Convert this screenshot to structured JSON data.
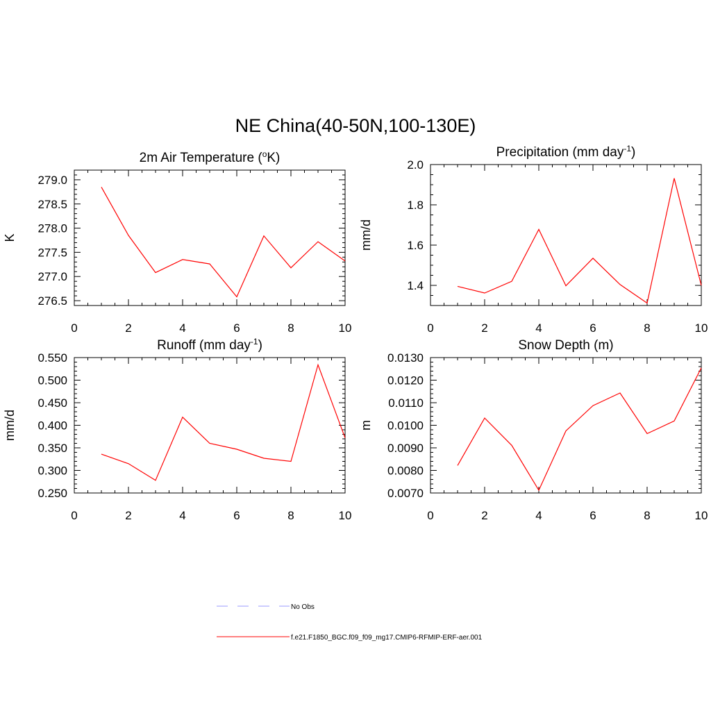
{
  "figure": {
    "title": "NE China(40-50N,100-130E)"
  },
  "colors": {
    "model_line": "#ff0000",
    "obs_line": "#9999ff",
    "axis": "#000000"
  },
  "chart_data": [
    {
      "type": "line",
      "title": "2m Air Temperature (°K)",
      "title_main": "2m Air Temperature (",
      "title_sup": "o",
      "title_tail": "K)",
      "xlabel": "",
      "ylabel": "K",
      "xlim": [
        0,
        10
      ],
      "ylim": [
        276.4,
        279.2
      ],
      "xticks": [
        0,
        2,
        4,
        6,
        8,
        10
      ],
      "xtick_labels": [
        "0",
        "2",
        "4",
        "6",
        "8",
        "10"
      ],
      "yticks": [
        276.5,
        277.0,
        277.5,
        278.0,
        278.5,
        279.0
      ],
      "ytick_labels": [
        "276.5",
        "277.0",
        "277.5",
        "278.0",
        "278.5",
        "279.0"
      ],
      "x_minor_step": 0.5,
      "y_minor_step": 0.1,
      "grid": false,
      "series": [
        {
          "x": [
            1,
            2,
            3,
            4,
            5,
            6,
            7,
            8,
            9,
            10
          ],
          "values": [
            278.85,
            277.85,
            277.08,
            277.35,
            277.26,
            276.58,
            277.84,
            277.18,
            277.72,
            277.32
          ]
        }
      ]
    },
    {
      "type": "line",
      "title": "Precipitation (mm day-1)",
      "title_main": "Precipitation (mm day",
      "title_sup": "-1",
      "title_tail": ")",
      "xlabel": "",
      "ylabel": "mm/d",
      "xlim": [
        0,
        10
      ],
      "ylim": [
        1.3,
        2.0
      ],
      "xticks": [
        0,
        2,
        4,
        6,
        8,
        10
      ],
      "xtick_labels": [
        "0",
        "2",
        "4",
        "6",
        "8",
        "10"
      ],
      "yticks": [
        1.4,
        1.6,
        1.8,
        2.0
      ],
      "ytick_labels": [
        "1.4",
        "1.6",
        "1.8",
        "2.0"
      ],
      "x_minor_step": 0.5,
      "y_minor_step": 0.05,
      "grid": false,
      "series": [
        {
          "x": [
            1,
            2,
            3,
            4,
            5,
            6,
            7,
            8,
            9,
            10
          ],
          "values": [
            1.395,
            1.362,
            1.42,
            1.678,
            1.398,
            1.535,
            1.404,
            1.312,
            1.932,
            1.4
          ]
        }
      ]
    },
    {
      "type": "line",
      "title": "Runoff (mm day-1)",
      "title_main": "Runoff (mm day",
      "title_sup": "-1",
      "title_tail": ")",
      "xlabel": "",
      "ylabel": "mm/d",
      "xlim": [
        0,
        10
      ],
      "ylim": [
        0.25,
        0.55
      ],
      "xticks": [
        0,
        2,
        4,
        6,
        8,
        10
      ],
      "xtick_labels": [
        "0",
        "2",
        "4",
        "6",
        "8",
        "10"
      ],
      "yticks": [
        0.25,
        0.3,
        0.35,
        0.4,
        0.45,
        0.5,
        0.55
      ],
      "ytick_labels": [
        "0.250",
        "0.300",
        "0.350",
        "0.400",
        "0.450",
        "0.500",
        "0.550"
      ],
      "x_minor_step": 0.5,
      "y_minor_step": 0.01,
      "grid": false,
      "series": [
        {
          "x": [
            1,
            2,
            3,
            4,
            5,
            6,
            7,
            8,
            9,
            10
          ],
          "values": [
            0.336,
            0.315,
            0.278,
            0.418,
            0.36,
            0.347,
            0.327,
            0.32,
            0.534,
            0.372
          ]
        }
      ]
    },
    {
      "type": "line",
      "title": "Snow Depth (m)",
      "title_main": "Snow Depth (m)",
      "title_sup": "",
      "title_tail": "",
      "xlabel": "",
      "ylabel": "m",
      "xlim": [
        0,
        10
      ],
      "ylim": [
        0.007,
        0.013
      ],
      "xticks": [
        0,
        2,
        4,
        6,
        8,
        10
      ],
      "xtick_labels": [
        "0",
        "2",
        "4",
        "6",
        "8",
        "10"
      ],
      "yticks": [
        0.007,
        0.008,
        0.009,
        0.01,
        0.011,
        0.012,
        0.013
      ],
      "ytick_labels": [
        "0.0070",
        "0.0080",
        "0.0090",
        "0.0100",
        "0.0110",
        "0.0120",
        "0.0130"
      ],
      "x_minor_step": 0.5,
      "y_minor_step": 0.0002,
      "grid": false,
      "series": [
        {
          "x": [
            1,
            2,
            3,
            4,
            5,
            6,
            7,
            8,
            9,
            10
          ],
          "values": [
            0.00822,
            0.01032,
            0.00911,
            0.00712,
            0.00975,
            0.01087,
            0.01143,
            0.00963,
            0.01019,
            0.01254
          ]
        }
      ]
    }
  ],
  "legend": {
    "items": [
      {
        "label": "No Obs",
        "style": "dashed",
        "color": "#9999ff"
      },
      {
        "label": "f.e21.F1850_BGC.f09_f09_mg17.CMIP6-RFMIP-ERF-aer.001",
        "style": "solid",
        "color": "#ff0000"
      }
    ]
  }
}
